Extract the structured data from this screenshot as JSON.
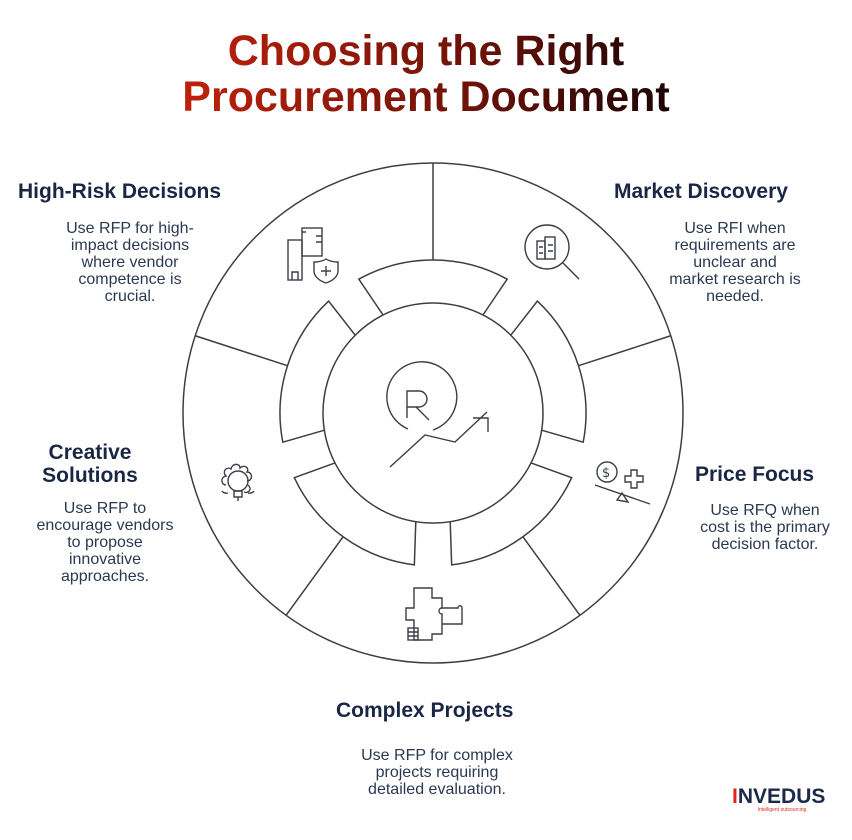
{
  "title": {
    "line1": "Choosing the Right",
    "line2": "Procurement Document"
  },
  "colors": {
    "title_start": "#c3220b",
    "title_end": "#150404",
    "heading": "#1a2744",
    "body": "#2b3950",
    "stroke": "#3a3f47",
    "logo_accent": "#e3261b"
  },
  "sections": [
    {
      "id": "high-risk",
      "heading": "High-Risk Decisions",
      "lines": [
        "Use RFP for high-",
        "impact decisions",
        "where vendor",
        "competence is",
        "crucial."
      ],
      "icon": "buildings-shield-icon"
    },
    {
      "id": "market",
      "heading": "Market Discovery",
      "lines": [
        "Use RFI when",
        "requirements are",
        "unclear and",
        "market research is",
        "needed."
      ],
      "icon": "magnifier-buildings-icon"
    },
    {
      "id": "price",
      "heading": "Price Focus",
      "lines": [
        "Use RFQ when",
        "cost is the primary",
        "decision factor."
      ],
      "icon": "dollar-balance-icon"
    },
    {
      "id": "complex",
      "heading": "Complex Projects",
      "lines": [
        "Use RFP for complex",
        "projects requiring",
        "detailed evaluation."
      ],
      "icon": "puzzle-icon"
    },
    {
      "id": "creative",
      "heading_lines": [
        "Creative",
        "Solutions"
      ],
      "lines": [
        "Use RFP to",
        "encourage vendors",
        "to propose",
        "innovative",
        "approaches."
      ],
      "icon": "gear-lightbulb-icon"
    }
  ],
  "center_icon": "r-growth-arrow-icon",
  "logo": {
    "first": "I",
    "rest": "NVEDUS",
    "tagline": "Intelligent outsourcing"
  }
}
